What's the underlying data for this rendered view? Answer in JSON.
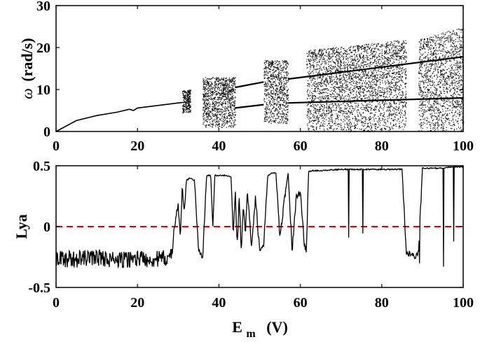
{
  "chart_data": [
    {
      "type": "scatter",
      "title": "",
      "xlabel": "",
      "ylabel": "ω (rad/s)",
      "ylabel_symbol": "ω",
      "ylabel_unit": "(rad/s)",
      "xlim": [
        0,
        100
      ],
      "ylim": [
        0,
        30
      ],
      "xticks": [
        "0",
        "20",
        "40",
        "60",
        "80",
        "100"
      ],
      "yticks": [
        "0",
        "10",
        "20",
        "30"
      ],
      "grid": false,
      "color": "#000000",
      "periodic_branch": {
        "x": [
          0,
          5,
          10,
          15,
          18,
          19,
          20,
          25,
          30,
          32
        ],
        "y": [
          0,
          2.6,
          3.8,
          4.6,
          5.3,
          5.0,
          5.6,
          6.2,
          6.8,
          7.0
        ]
      },
      "chaotic_bands": [
        {
          "x": [
            31,
            33
          ],
          "y": [
            4.5,
            10
          ]
        },
        {
          "x": [
            36,
            44
          ],
          "y": [
            1,
            13
          ]
        },
        {
          "x": [
            51,
            57
          ],
          "y": [
            2,
            17
          ]
        },
        {
          "x": [
            61.5,
            86
          ],
          "y": [
            0,
            22
          ]
        },
        {
          "x": [
            89,
            100
          ],
          "y": [
            0,
            25
          ]
        }
      ],
      "coexisting_branches": [
        {
          "x": [
            44,
            51
          ],
          "y": [
            10.5,
            11.8
          ]
        },
        {
          "x": [
            44,
            51
          ],
          "y": [
            5.6,
            6.4
          ]
        },
        {
          "x": [
            57,
            100
          ],
          "y": [
            12.5,
            17.8
          ]
        },
        {
          "x": [
            57,
            100
          ],
          "y": [
            6.8,
            8.0
          ]
        }
      ]
    },
    {
      "type": "line",
      "title": "",
      "xlabel": "E",
      "xlabel_sub": "m",
      "xlabel_unit": "(V)",
      "ylabel": "Lya",
      "xlim": [
        0,
        100
      ],
      "ylim": [
        -0.5,
        0.5
      ],
      "xticks": [
        "0",
        "20",
        "40",
        "60",
        "80",
        "100"
      ],
      "yticks": [
        "-0.5",
        "0",
        "0.5"
      ],
      "grid": false,
      "color": "#000000",
      "reference_line": {
        "y": 0,
        "style": "dashed",
        "color": "#e00000"
      },
      "series": [
        {
          "x": [
            0,
            5,
            10,
            15,
            20,
            25,
            28.5,
            29,
            30,
            30.5,
            31,
            31.5,
            32,
            33,
            34,
            35,
            36,
            37,
            38,
            38.5,
            39,
            40,
            42,
            43,
            43.5,
            44,
            44.5,
            45,
            45.5,
            46,
            46.5,
            47,
            48,
            49,
            50,
            51,
            52,
            53,
            54,
            55,
            56,
            57,
            58,
            59,
            60,
            61,
            61.5,
            62,
            63,
            65,
            70,
            75,
            80,
            85,
            86,
            87,
            88,
            89,
            90,
            95,
            97,
            100
          ],
          "y": [
            -0.26,
            -0.27,
            -0.25,
            -0.28,
            -0.26,
            -0.27,
            -0.25,
            0.0,
            0.18,
            -0.1,
            0.35,
            0.1,
            0.38,
            0.4,
            0.38,
            -0.2,
            -0.25,
            0.42,
            0.42,
            0.0,
            0.42,
            0.42,
            0.42,
            0.41,
            -0.1,
            0.3,
            -0.15,
            0.25,
            -0.2,
            0.2,
            -0.05,
            0.28,
            -0.15,
            0.25,
            -0.2,
            -0.15,
            0.42,
            0.44,
            0.44,
            -0.1,
            0.2,
            0.44,
            -0.2,
            0.25,
            0.28,
            -0.15,
            -0.2,
            0.45,
            0.46,
            0.46,
            0.47,
            0.47,
            0.47,
            0.47,
            -0.2,
            -0.22,
            -0.25,
            -0.23,
            0.48,
            0.48,
            0.49,
            0.49
          ]
        }
      ]
    }
  ]
}
